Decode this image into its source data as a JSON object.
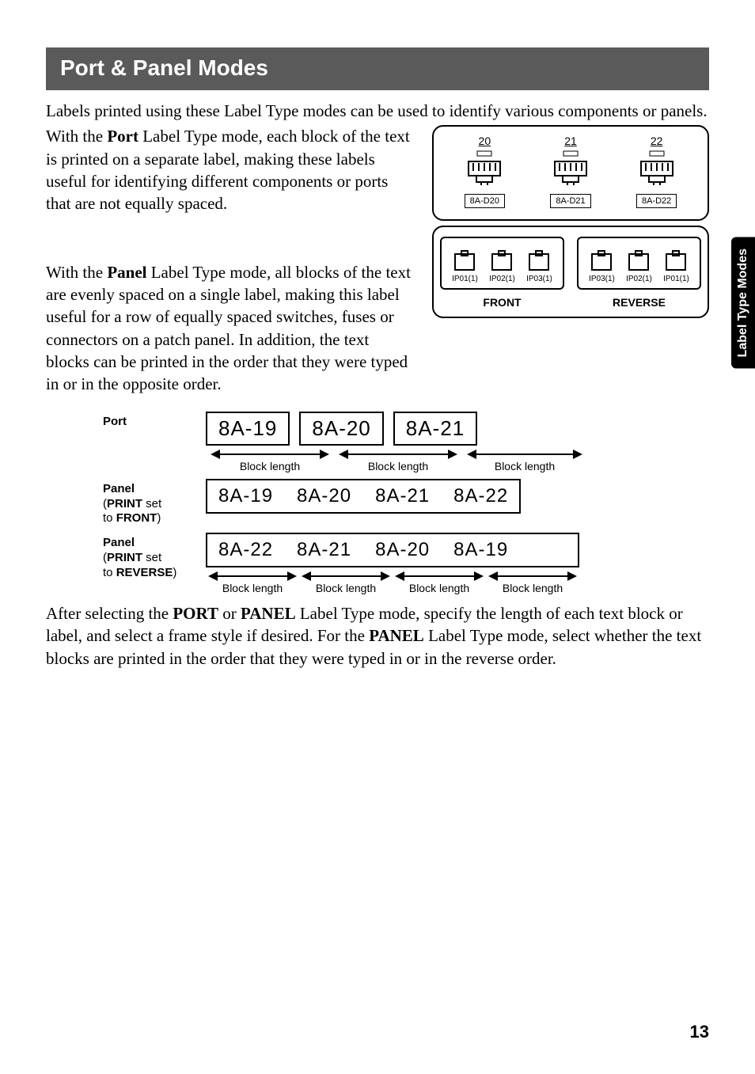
{
  "heading": "Port & Panel Modes",
  "side_tab": "Label Type Modes",
  "page_number": "13",
  "colors": {
    "heading_bg": "#5a5a5a",
    "heading_fg": "#ffffff",
    "tab_bg": "#000000",
    "tab_fg": "#ffffff",
    "page_bg": "#ffffff",
    "text": "#000000"
  },
  "intro": "Labels printed using these Label Type modes can be used to identify various components or panels.",
  "port_para_pre": "With the ",
  "port_para_bold": "Port",
  "port_para_post": " Label Type mode, each block of the text is printed on a separate label, making these labels useful for identifying different components or ports that are not equally spaced.",
  "panel_para_pre": "With the ",
  "panel_para_bold": "Panel",
  "panel_para_post": " Label Type mode, all blocks of the text are evenly spaced on a single label, making this label useful for a row of equally spaced switches, fuses or connectors on a patch panel. In addition, the text blocks can be printed in the order that they were typed in or in the opposite order.",
  "closing_a": "After selecting the ",
  "closing_b1": "PORT",
  "closing_c": " or ",
  "closing_b2": "PANEL",
  "closing_d": " Label Type mode, specify the length of each text block or label, and select a frame style if desired. For the ",
  "closing_b3": "PANEL",
  "closing_e": " Label Type mode, select whether the text blocks are printed in the order that they were typed in or in the reverse order.",
  "top_diagram": {
    "ports": [
      {
        "num": "20",
        "label": "8A-D20"
      },
      {
        "num": "21",
        "label": "8A-D21"
      },
      {
        "num": "22",
        "label": "8A-D22"
      }
    ]
  },
  "bottom_diagram": {
    "front_name": "FRONT",
    "reverse_name": "REVERSE",
    "front_labels": [
      "IP01(1)",
      "IP02(1)",
      "IP03(1)"
    ],
    "reverse_labels": [
      "IP03(1)",
      "IP02(1)",
      "IP01(1)"
    ]
  },
  "examples": {
    "port_label": "Port",
    "panel_front_l1": "Panel",
    "panel_front_l2a": "(",
    "panel_front_l2b": "PRINT",
    "panel_front_l2c": " set",
    "panel_front_l3a": "to ",
    "panel_front_l3b": "FRONT",
    "panel_front_l3c": ")",
    "panel_rev_l1": "Panel",
    "panel_rev_l2a": "(",
    "panel_rev_l2b": "PRINT",
    "panel_rev_l2c": " set",
    "panel_rev_l3a": "to ",
    "panel_rev_l3b": "REVERSE",
    "panel_rev_l3c": ")",
    "port_blocks": [
      "8A-19",
      "8A-20",
      "8A-21"
    ],
    "block_length": "Block length",
    "panel_front_cells": [
      "8A-19",
      "8A-20",
      "8A-21",
      "8A-22"
    ],
    "panel_rev_cells": [
      "8A-22",
      "8A-21",
      "8A-20",
      "8A-19"
    ],
    "port_arrow_widths": [
      150,
      150,
      146
    ],
    "panel_arrow_widths": [
      118,
      118,
      118,
      118
    ]
  }
}
